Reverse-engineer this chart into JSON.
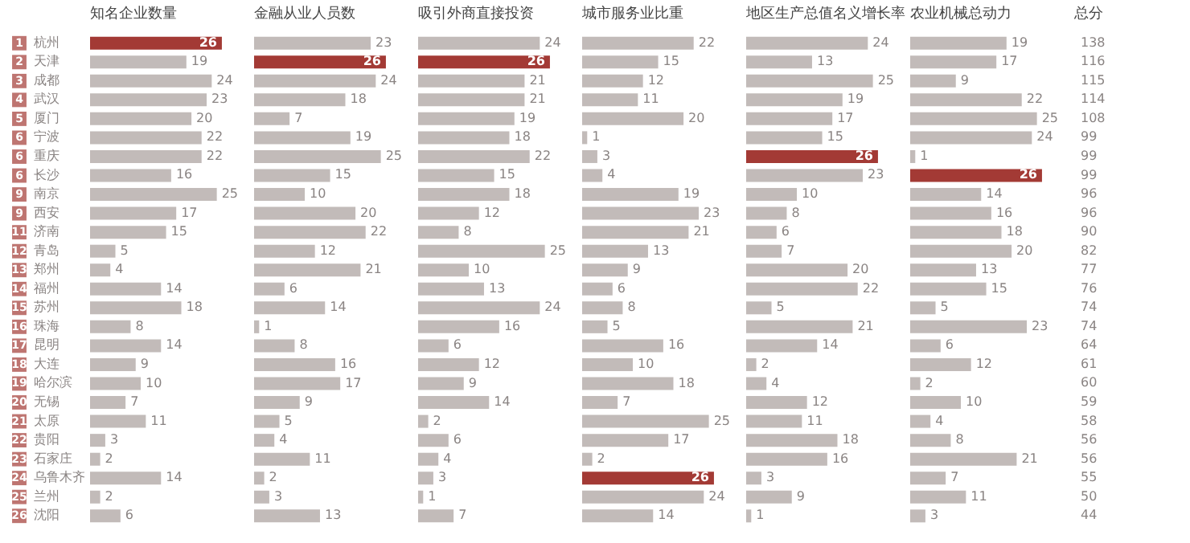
{
  "chart_data": [
    {
      "type": "bar",
      "orientation": "horizontal",
      "title": "知名企业数量",
      "tick_labels": "y",
      "data_labels": true,
      "color": "#c2bbb9",
      "categories": [
        "1 杭州",
        "2 天津",
        "3 成都",
        "4 武汉",
        "5 厦门",
        "6 宁波",
        "6 重庆",
        "6 长沙",
        "9 南京",
        "9 西安",
        "11 济南",
        "12 青岛",
        "13 郑州",
        "14 福州",
        "15 苏州",
        "16 珠海",
        "17 昆明",
        "18 大连",
        "19 哈尔滨",
        "20 无锡",
        "21 太原",
        "22 贵阳",
        "23 石家庄",
        "24 乌鲁木齐",
        "25 兰州",
        "26 沈阳"
      ],
      "values": [
        26,
        19,
        24,
        23,
        20,
        22,
        22,
        16,
        25,
        17,
        15,
        5,
        4,
        14,
        18,
        8,
        14,
        9,
        10,
        7,
        11,
        3,
        2,
        14,
        2,
        6
      ],
      "colors": [
        "#a33a35",
        "#c2bbb9",
        "#c2bbb9",
        "#c2bbb9",
        "#c2bbb9",
        "#c2bbb9",
        "#c2bbb9",
        "#c2bbb9",
        "#c2bbb9",
        "#c2bbb9",
        "#c2bbb9",
        "#c2bbb9",
        "#c2bbb9",
        "#c2bbb9",
        "#c2bbb9",
        "#c2bbb9",
        "#c2bbb9",
        "#c2bbb9",
        "#c2bbb9",
        "#c2bbb9",
        "#c2bbb9",
        "#c2bbb9",
        "#c2bbb9",
        "#c2bbb9",
        "#c2bbb9",
        "#c2bbb9"
      ]
    },
    {
      "type": "bar",
      "orientation": "horizontal",
      "title": "金融从业人员数",
      "tick_labels": false,
      "data_labels": true,
      "color": "#c2bbb9",
      "categories": [
        null,
        null,
        null,
        null,
        null,
        null,
        null,
        null,
        null,
        null,
        null,
        null,
        null,
        null,
        null,
        null,
        null,
        null,
        null,
        null,
        null,
        null,
        null,
        null,
        null,
        null
      ],
      "values": [
        23,
        26,
        24,
        18,
        7,
        19,
        25,
        15,
        10,
        20,
        22,
        12,
        21,
        6,
        14,
        1,
        8,
        16,
        17,
        9,
        5,
        4,
        11,
        2,
        3,
        13
      ],
      "colors": [
        "#c2bbb9",
        "#a33a35",
        "#c2bbb9",
        "#c2bbb9",
        "#c2bbb9",
        "#c2bbb9",
        "#c2bbb9",
        "#c2bbb9",
        "#c2bbb9",
        "#c2bbb9",
        "#c2bbb9",
        "#c2bbb9",
        "#c2bbb9",
        "#c2bbb9",
        "#c2bbb9",
        "#c2bbb9",
        "#c2bbb9",
        "#c2bbb9",
        "#c2bbb9",
        "#c2bbb9",
        "#c2bbb9",
        "#c2bbb9",
        "#c2bbb9",
        "#c2bbb9",
        "#c2bbb9",
        "#c2bbb9"
      ]
    },
    {
      "type": "bar",
      "orientation": "horizontal",
      "title": "吸引外商直接投资",
      "tick_labels": false,
      "data_labels": true,
      "color": "#c2bbb9",
      "categories": [
        null,
        null,
        null,
        null,
        null,
        null,
        null,
        null,
        null,
        null,
        null,
        null,
        null,
        null,
        null,
        null,
        null,
        null,
        null,
        null,
        null,
        null,
        null,
        null,
        null,
        null
      ],
      "values": [
        24,
        26,
        21,
        21,
        19,
        18,
        22,
        15,
        18,
        12,
        8,
        25,
        10,
        13,
        24,
        16,
        6,
        12,
        9,
        14,
        2,
        6,
        4,
        3,
        1,
        7
      ],
      "colors": [
        "#c2bbb9",
        "#a33a35",
        "#c2bbb9",
        "#c2bbb9",
        "#c2bbb9",
        "#c2bbb9",
        "#c2bbb9",
        "#c2bbb9",
        "#c2bbb9",
        "#c2bbb9",
        "#c2bbb9",
        "#c2bbb9",
        "#c2bbb9",
        "#c2bbb9",
        "#c2bbb9",
        "#c2bbb9",
        "#c2bbb9",
        "#c2bbb9",
        "#c2bbb9",
        "#c2bbb9",
        "#c2bbb9",
        "#c2bbb9",
        "#c2bbb9",
        "#c2bbb9",
        "#c2bbb9",
        "#c2bbb9"
      ]
    },
    {
      "type": "bar",
      "orientation": "horizontal",
      "title": "城市服务业比重",
      "tick_labels": false,
      "data_labels": true,
      "color": "#c2bbb9",
      "categories": [
        null,
        null,
        null,
        null,
        null,
        null,
        null,
        null,
        null,
        null,
        null,
        null,
        null,
        null,
        null,
        null,
        null,
        null,
        null,
        null,
        null,
        null,
        null,
        null,
        null,
        null
      ],
      "values": [
        22,
        15,
        12,
        11,
        20,
        1,
        3,
        4,
        19,
        23,
        21,
        13,
        9,
        6,
        8,
        5,
        16,
        10,
        18,
        7,
        25,
        17,
        2,
        26,
        24,
        14
      ],
      "colors": [
        "#c2bbb9",
        "#c2bbb9",
        "#c2bbb9",
        "#c2bbb9",
        "#c2bbb9",
        "#c2bbb9",
        "#c2bbb9",
        "#c2bbb9",
        "#c2bbb9",
        "#c2bbb9",
        "#c2bbb9",
        "#c2bbb9",
        "#c2bbb9",
        "#c2bbb9",
        "#c2bbb9",
        "#c2bbb9",
        "#c2bbb9",
        "#c2bbb9",
        "#c2bbb9",
        "#c2bbb9",
        "#c2bbb9",
        "#c2bbb9",
        "#c2bbb9",
        "#a33a35",
        "#c2bbb9",
        "#c2bbb9"
      ]
    },
    {
      "type": "bar",
      "orientation": "horizontal",
      "title": "地区生产总值名义增长率",
      "tick_labels": false,
      "data_labels": true,
      "color": "#c2bbb9",
      "categories": [
        null,
        null,
        null,
        null,
        null,
        null,
        null,
        null,
        null,
        null,
        null,
        null,
        null,
        null,
        null,
        null,
        null,
        null,
        null,
        null,
        null,
        null,
        null,
        null,
        null,
        null
      ],
      "values": [
        24,
        13,
        25,
        19,
        17,
        15,
        26,
        23,
        10,
        8,
        6,
        7,
        20,
        22,
        5,
        21,
        14,
        2,
        4,
        12,
        11,
        18,
        16,
        3,
        9,
        1
      ],
      "colors": [
        "#c2bbb9",
        "#c2bbb9",
        "#c2bbb9",
        "#c2bbb9",
        "#c2bbb9",
        "#c2bbb9",
        "#a33a35",
        "#c2bbb9",
        "#c2bbb9",
        "#c2bbb9",
        "#c2bbb9",
        "#c2bbb9",
        "#c2bbb9",
        "#c2bbb9",
        "#c2bbb9",
        "#c2bbb9",
        "#c2bbb9",
        "#c2bbb9",
        "#c2bbb9",
        "#c2bbb9",
        "#c2bbb9",
        "#c2bbb9",
        "#c2bbb9",
        "#c2bbb9",
        "#c2bbb9",
        "#c2bbb9"
      ]
    },
    {
      "type": "bar",
      "orientation": "horizontal",
      "title": "农业机械总动力",
      "tick_labels": false,
      "data_labels": true,
      "color": "#c2bbb9",
      "categories": [
        null,
        null,
        null,
        null,
        null,
        null,
        null,
        null,
        null,
        null,
        null,
        null,
        null,
        null,
        null,
        null,
        null,
        null,
        null,
        null,
        null,
        null,
        null,
        null,
        null,
        null
      ],
      "values": [
        19,
        17,
        9,
        22,
        25,
        24,
        1,
        26,
        14,
        16,
        18,
        20,
        13,
        15,
        5,
        23,
        6,
        12,
        2,
        10,
        4,
        8,
        21,
        7,
        11,
        3
      ],
      "colors": [
        "#c2bbb9",
        "#c2bbb9",
        "#c2bbb9",
        "#c2bbb9",
        "#c2bbb9",
        "#c2bbb9",
        "#c2bbb9",
        "#a33a35",
        "#c2bbb9",
        "#c2bbb9",
        "#c2bbb9",
        "#c2bbb9",
        "#c2bbb9",
        "#c2bbb9",
        "#c2bbb9",
        "#c2bbb9",
        "#c2bbb9",
        "#c2bbb9",
        "#c2bbb9",
        "#c2bbb9",
        "#c2bbb9",
        "#c2bbb9",
        "#c2bbb9",
        "#c2bbb9",
        "#c2bbb9",
        "#c2bbb9"
      ]
    },
    {
      "type": "other",
      "title": "总分",
      "annotations": [
        "138",
        "116",
        "115",
        "114",
        "108",
        "99",
        "99",
        "99",
        "96",
        "96",
        "90",
        "82",
        "77",
        "76",
        "74",
        "74",
        "64",
        "61",
        "60",
        "59",
        "58",
        "56",
        "56",
        "55",
        "50",
        "44"
      ]
    }
  ]
}
